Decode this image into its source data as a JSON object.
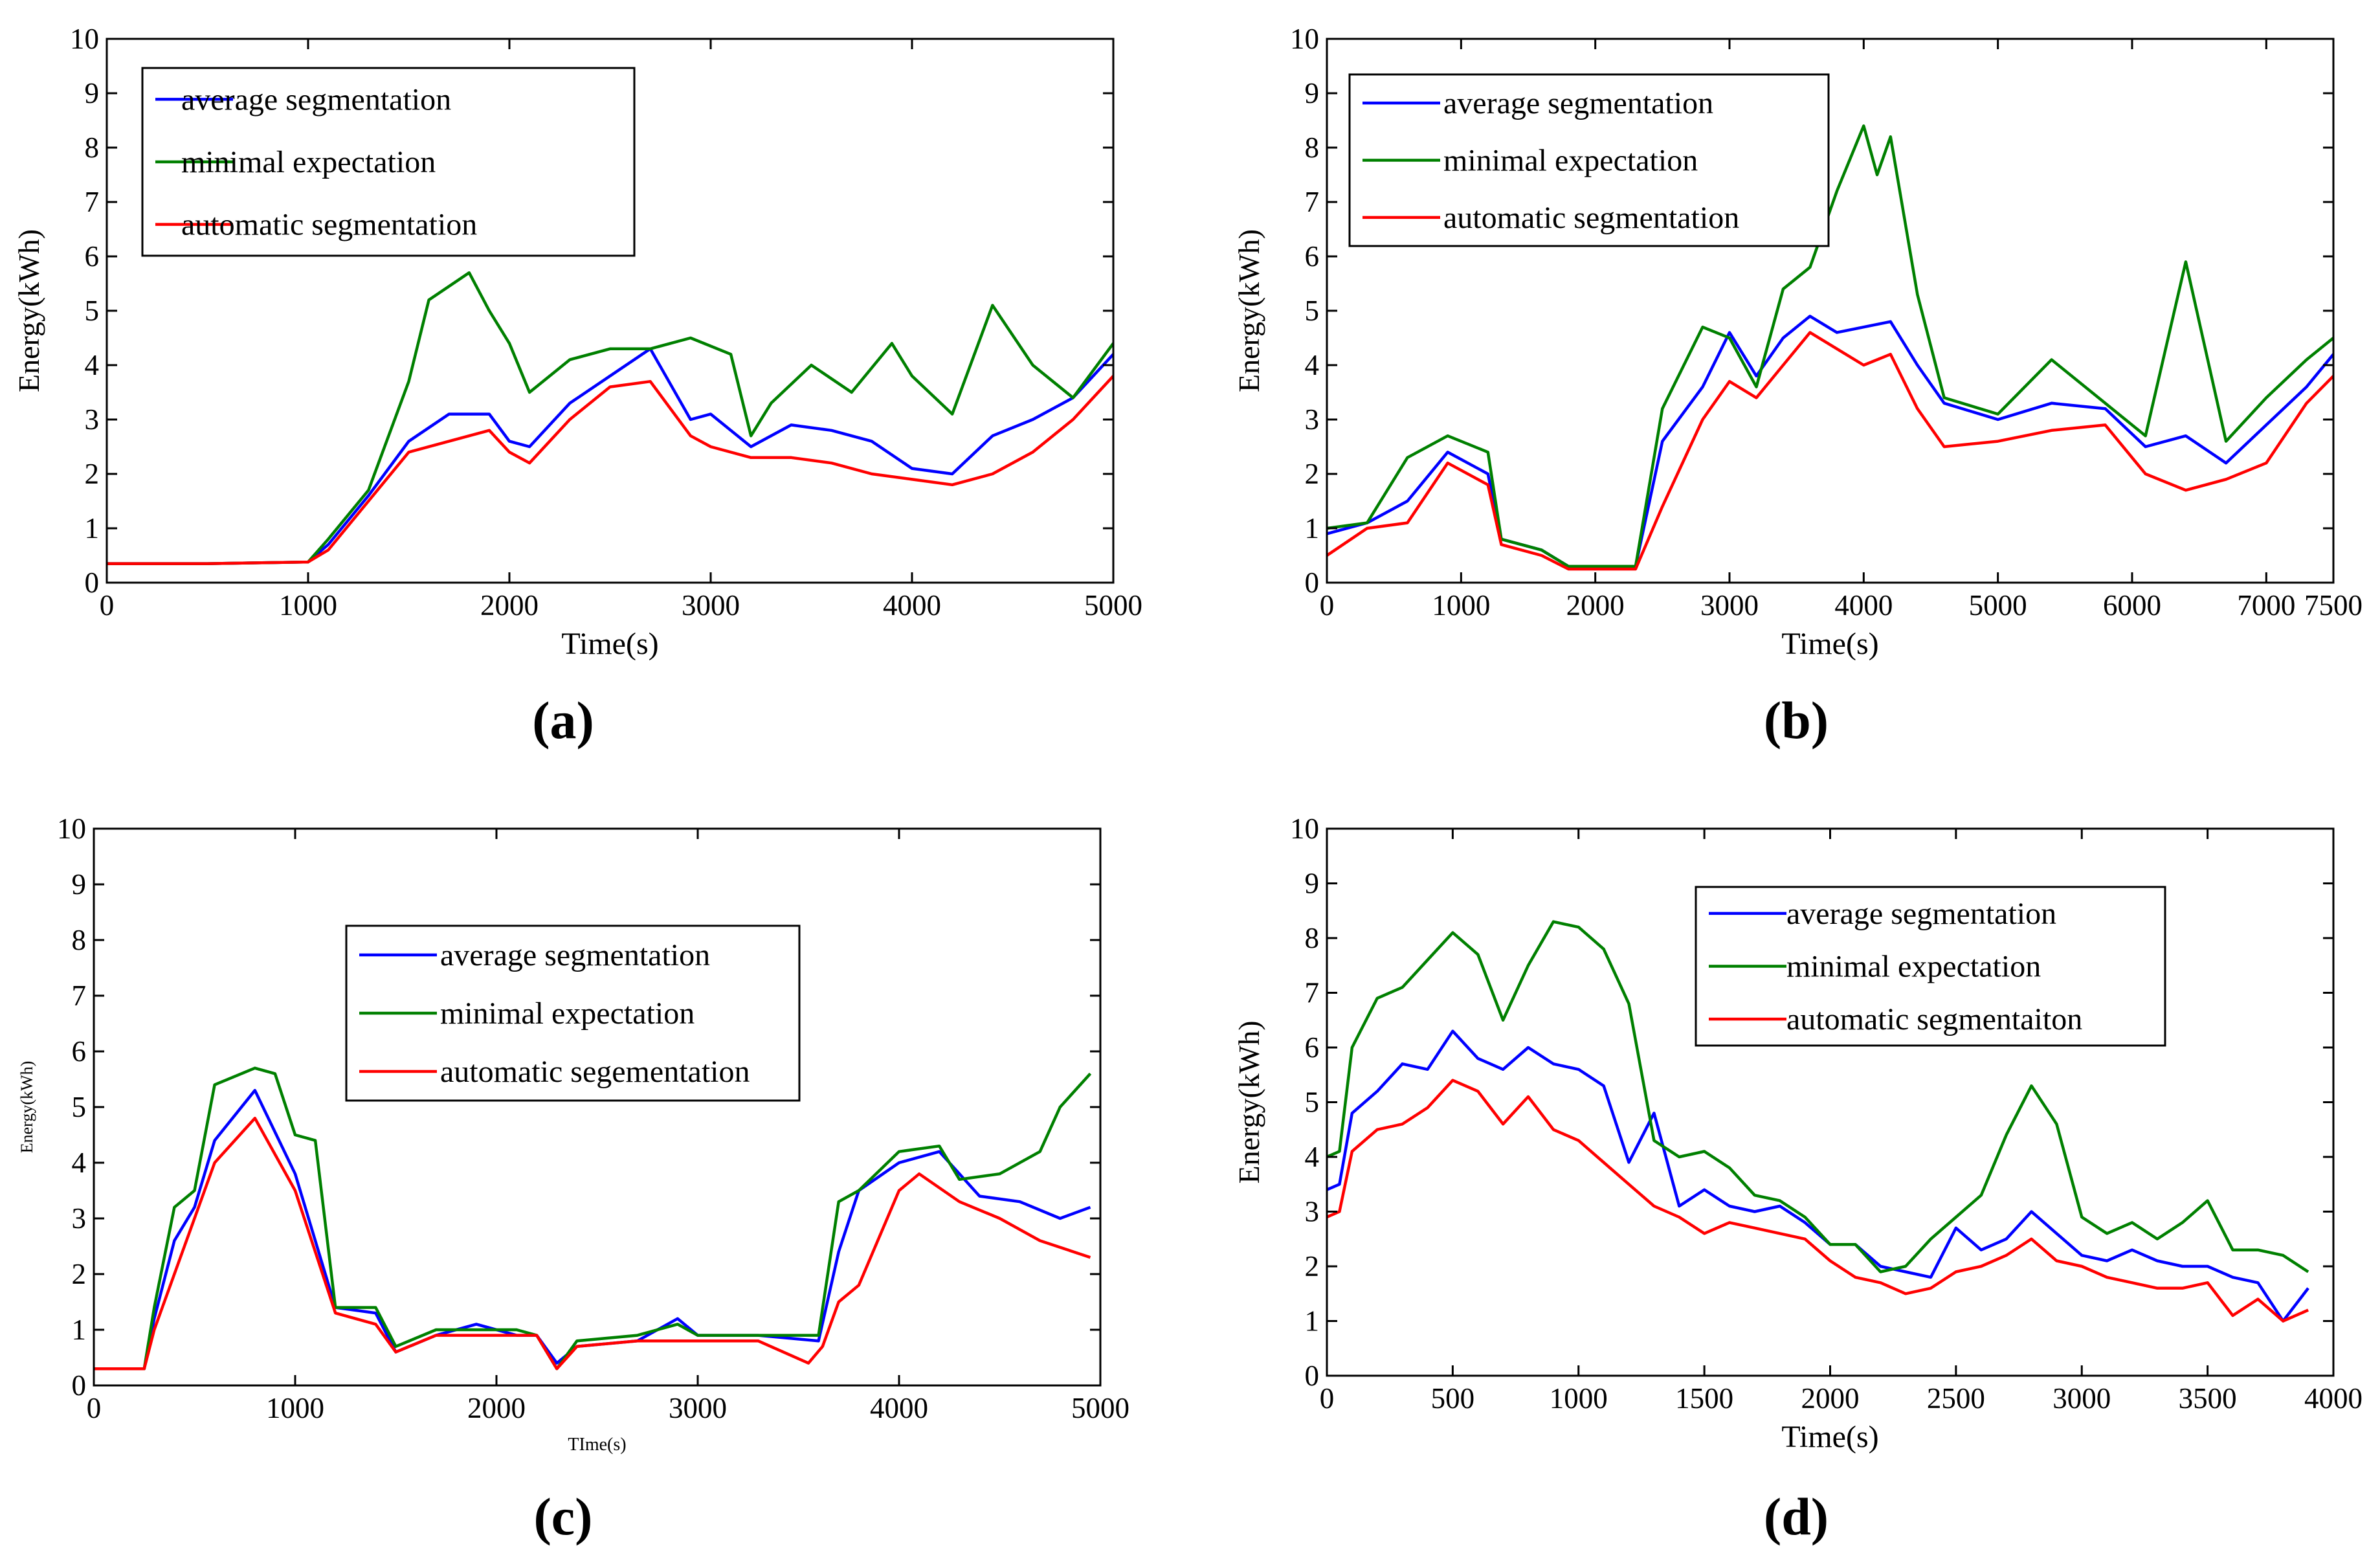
{
  "chart_data": [
    {
      "panel_label": "(a)",
      "type": "line",
      "xlabel": "Time(s)",
      "ylabel": "Energy(kWh)",
      "xlim": [
        0,
        5000
      ],
      "ylim": [
        0,
        10
      ],
      "xticks": [
        0,
        1000,
        2000,
        3000,
        4000,
        5000
      ],
      "xtick_labels": [
        "0",
        "1000",
        "2000",
        "3000",
        "4000",
        "5000"
      ],
      "yticks": [
        0,
        1,
        2,
        3,
        4,
        5,
        6,
        7,
        8,
        9,
        10
      ],
      "legend_position": "top-left",
      "grid": false,
      "series": [
        {
          "name": "average segmentation",
          "color": "#0000ff",
          "x": [
            0,
            500,
            1000,
            1100,
            1300,
            1500,
            1700,
            1900,
            2000,
            2100,
            2300,
            2500,
            2700,
            2900,
            3000,
            3200,
            3400,
            3600,
            3800,
            4000,
            4200,
            4400,
            4600,
            4800,
            5000
          ],
          "y": [
            0.35,
            0.35,
            0.38,
            0.7,
            1.6,
            2.6,
            3.1,
            3.1,
            2.6,
            2.5,
            3.3,
            3.8,
            4.3,
            3.0,
            3.1,
            2.5,
            2.9,
            2.8,
            2.6,
            2.1,
            2.0,
            2.7,
            3.0,
            3.4,
            4.2
          ]
        },
        {
          "name": "minimal expectation",
          "color": "#008000",
          "x": [
            0,
            500,
            1000,
            1100,
            1300,
            1500,
            1600,
            1800,
            1900,
            2000,
            2100,
            2300,
            2500,
            2700,
            2900,
            3100,
            3200,
            3300,
            3500,
            3700,
            3900,
            4000,
            4200,
            4400,
            4600,
            4800,
            5000
          ],
          "y": [
            0.35,
            0.35,
            0.38,
            0.8,
            1.7,
            3.7,
            5.2,
            5.7,
            5.0,
            4.4,
            3.5,
            4.1,
            4.3,
            4.3,
            4.5,
            4.2,
            2.7,
            3.3,
            4.0,
            3.5,
            4.4,
            3.8,
            3.1,
            5.1,
            4.0,
            3.4,
            4.4
          ]
        },
        {
          "name": "automatic segmentation",
          "color": "#ff0000",
          "x": [
            0,
            500,
            1000,
            1100,
            1300,
            1500,
            1700,
            1900,
            2000,
            2100,
            2300,
            2500,
            2700,
            2900,
            3000,
            3200,
            3400,
            3600,
            3800,
            4000,
            4200,
            4400,
            4600,
            4800,
            5000
          ],
          "y": [
            0.35,
            0.35,
            0.38,
            0.6,
            1.5,
            2.4,
            2.6,
            2.8,
            2.4,
            2.2,
            3.0,
            3.6,
            3.7,
            2.7,
            2.5,
            2.3,
            2.3,
            2.2,
            2.0,
            1.9,
            1.8,
            2.0,
            2.4,
            3.0,
            3.8
          ]
        }
      ]
    },
    {
      "panel_label": "(b)",
      "type": "line",
      "xlabel": "Time(s)",
      "ylabel": "Energy(kWh)",
      "xlim": [
        0,
        7500
      ],
      "ylim": [
        0,
        10
      ],
      "xticks": [
        0,
        1000,
        2000,
        3000,
        4000,
        5000,
        6000,
        7000,
        7500
      ],
      "xtick_labels": [
        "0",
        "1000",
        "2000",
        "3000",
        "4000",
        "5000",
        "6000",
        "7000",
        "7500"
      ],
      "yticks": [
        0,
        1,
        2,
        3,
        4,
        5,
        6,
        7,
        8,
        9,
        10
      ],
      "legend_position": "top-left",
      "grid": false,
      "series": [
        {
          "name": "average segmentation",
          "color": "#0000ff",
          "x": [
            0,
            300,
            600,
            900,
            1200,
            1300,
            1600,
            1800,
            2300,
            2500,
            2800,
            3000,
            3200,
            3400,
            3600,
            3800,
            4000,
            4200,
            4400,
            4600,
            5000,
            5400,
            5800,
            6100,
            6400,
            6700,
            7000,
            7300,
            7500
          ],
          "y": [
            0.9,
            1.1,
            1.5,
            2.4,
            2.0,
            0.8,
            0.6,
            0.3,
            0.3,
            2.6,
            3.6,
            4.6,
            3.8,
            4.5,
            4.9,
            4.6,
            4.7,
            4.8,
            4.0,
            3.3,
            3.0,
            3.3,
            3.2,
            2.5,
            2.7,
            2.2,
            2.9,
            3.6,
            4.2
          ]
        },
        {
          "name": "minimal expectation",
          "color": "#008000",
          "x": [
            0,
            300,
            600,
            900,
            1200,
            1300,
            1600,
            1800,
            2300,
            2500,
            2800,
            3000,
            3200,
            3400,
            3600,
            3800,
            4000,
            4100,
            4200,
            4400,
            4600,
            5000,
            5400,
            5800,
            6100,
            6400,
            6700,
            7000,
            7300,
            7500
          ],
          "y": [
            1.0,
            1.1,
            2.3,
            2.7,
            2.4,
            0.8,
            0.6,
            0.3,
            0.3,
            3.2,
            4.7,
            4.5,
            3.6,
            5.4,
            5.8,
            7.2,
            8.4,
            7.5,
            8.2,
            5.3,
            3.4,
            3.1,
            4.1,
            3.3,
            2.7,
            5.9,
            2.6,
            3.4,
            4.1,
            4.5
          ]
        },
        {
          "name": "automatic segmentation",
          "color": "#ff0000",
          "x": [
            0,
            300,
            600,
            900,
            1200,
            1300,
            1600,
            1800,
            2300,
            2500,
            2800,
            3000,
            3200,
            3400,
            3600,
            3800,
            4000,
            4200,
            4400,
            4600,
            5000,
            5400,
            5800,
            6100,
            6400,
            6700,
            7000,
            7300,
            7500
          ],
          "y": [
            0.5,
            1.0,
            1.1,
            2.2,
            1.8,
            0.7,
            0.5,
            0.25,
            0.25,
            1.4,
            3.0,
            3.7,
            3.4,
            4.0,
            4.6,
            4.3,
            4.0,
            4.2,
            3.2,
            2.5,
            2.6,
            2.8,
            2.9,
            2.0,
            1.7,
            1.9,
            2.2,
            3.3,
            3.8
          ]
        }
      ]
    },
    {
      "panel_label": "(c)",
      "type": "line",
      "xlabel": "TIme(s)",
      "ylabel": "Energy(kWh)",
      "xlim": [
        0,
        5000
      ],
      "ylim": [
        0,
        10
      ],
      "xticks": [
        0,
        1000,
        2000,
        3000,
        4000,
        5000
      ],
      "xtick_labels": [
        "0",
        "1000",
        "2000",
        "3000",
        "4000",
        "5000"
      ],
      "yticks": [
        0,
        1,
        2,
        3,
        4,
        5,
        6,
        7,
        8,
        9,
        10
      ],
      "legend_position": "center",
      "grid": false,
      "series": [
        {
          "name": "average segmentation",
          "color": "#0000ff",
          "x": [
            0,
            250,
            300,
            400,
            500,
            600,
            800,
            1000,
            1200,
            1400,
            1500,
            1700,
            1900,
            2100,
            2200,
            2300,
            2400,
            2700,
            2900,
            3000,
            3300,
            3600,
            3700,
            3800,
            4000,
            4200,
            4400,
            4600,
            4800,
            4950
          ],
          "y": [
            0.3,
            0.3,
            1.2,
            2.6,
            3.2,
            4.4,
            5.3,
            3.8,
            1.4,
            1.3,
            0.6,
            0.9,
            1.1,
            0.9,
            0.9,
            0.4,
            0.7,
            0.8,
            1.2,
            0.9,
            0.9,
            0.8,
            2.4,
            3.5,
            4.0,
            4.2,
            3.4,
            3.3,
            3.0,
            3.2
          ]
        },
        {
          "name": "minimal expectation",
          "color": "#008000",
          "x": [
            0,
            250,
            300,
            400,
            500,
            600,
            800,
            900,
            1000,
            1100,
            1200,
            1400,
            1500,
            1700,
            1900,
            2100,
            2200,
            2300,
            2400,
            2700,
            2900,
            3000,
            3300,
            3600,
            3700,
            3800,
            4000,
            4200,
            4300,
            4500,
            4700,
            4800,
            4950
          ],
          "y": [
            0.3,
            0.3,
            1.4,
            3.2,
            3.5,
            5.4,
            5.7,
            5.6,
            4.5,
            4.4,
            1.4,
            1.4,
            0.7,
            1.0,
            1.0,
            1.0,
            0.9,
            0.3,
            0.8,
            0.9,
            1.1,
            0.9,
            0.9,
            0.9,
            3.3,
            3.5,
            4.2,
            4.3,
            3.7,
            3.8,
            4.2,
            5.0,
            5.6
          ]
        },
        {
          "name": "automatic segementation",
          "color": "#ff0000",
          "x": [
            0,
            250,
            300,
            400,
            500,
            600,
            800,
            1000,
            1200,
            1400,
            1500,
            1700,
            1900,
            2100,
            2200,
            2300,
            2400,
            2700,
            2900,
            3000,
            3300,
            3550,
            3620,
            3700,
            3800,
            4000,
            4100,
            4300,
            4500,
            4700,
            4950
          ],
          "y": [
            0.3,
            0.3,
            1.0,
            2.0,
            3.0,
            4.0,
            4.8,
            3.5,
            1.3,
            1.1,
            0.6,
            0.9,
            0.9,
            0.9,
            0.9,
            0.3,
            0.7,
            0.8,
            0.8,
            0.8,
            0.8,
            0.4,
            0.7,
            1.5,
            1.8,
            3.5,
            3.8,
            3.3,
            3.0,
            2.6,
            2.3
          ]
        }
      ]
    },
    {
      "panel_label": "(d)",
      "type": "line",
      "xlabel": "Time(s)",
      "ylabel": "Energy(kWh)",
      "xlim": [
        0,
        4000
      ],
      "ylim": [
        0,
        10
      ],
      "xticks": [
        0,
        500,
        1000,
        1500,
        2000,
        2500,
        3000,
        3500,
        4000
      ],
      "xtick_labels": [
        "0",
        "500",
        "1000",
        "1500",
        "2000",
        "2500",
        "3000",
        "3500",
        "4000"
      ],
      "yticks": [
        0,
        1,
        2,
        3,
        4,
        5,
        6,
        7,
        8,
        9,
        10
      ],
      "legend_position": "top-right",
      "grid": false,
      "series": [
        {
          "name": "average segmentation",
          "color": "#0000ff",
          "x": [
            0,
            50,
            100,
            200,
            300,
            400,
            500,
            600,
            700,
            800,
            900,
            1000,
            1100,
            1200,
            1300,
            1400,
            1500,
            1600,
            1700,
            1800,
            1900,
            2000,
            2100,
            2200,
            2300,
            2400,
            2500,
            2600,
            2700,
            2800,
            2900,
            3000,
            3100,
            3200,
            3300,
            3400,
            3500,
            3600,
            3700,
            3800,
            3900
          ],
          "y": [
            3.4,
            3.5,
            4.8,
            5.2,
            5.7,
            5.6,
            6.3,
            5.8,
            5.6,
            6.0,
            5.7,
            5.6,
            5.3,
            3.9,
            4.8,
            3.1,
            3.4,
            3.1,
            3.0,
            3.1,
            2.8,
            2.4,
            2.4,
            2.0,
            1.9,
            1.8,
            2.7,
            2.3,
            2.5,
            3.0,
            2.6,
            2.2,
            2.1,
            2.3,
            2.1,
            2.0,
            2.0,
            1.8,
            1.7,
            1.0,
            1.6
          ]
        },
        {
          "name": "minimal expectation",
          "color": "#008000",
          "x": [
            0,
            50,
            100,
            200,
            300,
            400,
            500,
            600,
            700,
            800,
            900,
            1000,
            1100,
            1200,
            1300,
            1400,
            1500,
            1600,
            1700,
            1800,
            1900,
            2000,
            2100,
            2200,
            2300,
            2400,
            2500,
            2600,
            2700,
            2800,
            2900,
            3000,
            3100,
            3200,
            3300,
            3400,
            3500,
            3600,
            3700,
            3800,
            3900
          ],
          "y": [
            4.0,
            4.1,
            6.0,
            6.9,
            7.1,
            7.6,
            8.1,
            7.7,
            6.5,
            7.5,
            8.3,
            8.2,
            7.8,
            6.8,
            4.3,
            4.0,
            4.1,
            3.8,
            3.3,
            3.2,
            2.9,
            2.4,
            2.4,
            1.9,
            2.0,
            2.5,
            2.9,
            3.3,
            4.4,
            5.3,
            4.6,
            2.9,
            2.6,
            2.8,
            2.5,
            2.8,
            3.2,
            2.3,
            2.3,
            2.2,
            1.9
          ]
        },
        {
          "name": "automatic segmentaiton",
          "color": "#ff0000",
          "x": [
            0,
            50,
            100,
            200,
            300,
            400,
            500,
            600,
            700,
            800,
            900,
            1000,
            1100,
            1200,
            1300,
            1400,
            1500,
            1600,
            1700,
            1800,
            1900,
            2000,
            2100,
            2200,
            2300,
            2400,
            2500,
            2600,
            2700,
            2800,
            2900,
            3000,
            3100,
            3200,
            3300,
            3400,
            3500,
            3600,
            3700,
            3800,
            3900
          ],
          "y": [
            2.9,
            3.0,
            4.1,
            4.5,
            4.6,
            4.9,
            5.4,
            5.2,
            4.6,
            5.1,
            4.5,
            4.3,
            3.9,
            3.5,
            3.1,
            2.9,
            2.6,
            2.8,
            2.7,
            2.6,
            2.5,
            2.1,
            1.8,
            1.7,
            1.5,
            1.6,
            1.9,
            2.0,
            2.2,
            2.5,
            2.1,
            2.0,
            1.8,
            1.7,
            1.6,
            1.6,
            1.7,
            1.1,
            1.4,
            1.0,
            1.2
          ]
        }
      ]
    }
  ]
}
